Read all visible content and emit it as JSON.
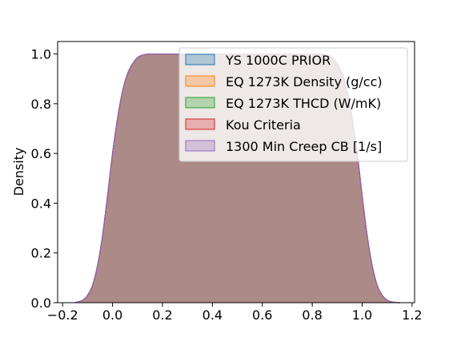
{
  "chart_data": {
    "type": "area",
    "title": "",
    "xlabel": "",
    "ylabel": "Density",
    "xlim": [
      -0.22,
      1.21
    ],
    "ylim": [
      0,
      1.05
    ],
    "xticks": [
      "−0.2",
      "0.0",
      "0.2",
      "0.4",
      "0.6",
      "0.8",
      "1.0",
      "1.2"
    ],
    "xtick_values": [
      -0.2,
      0.0,
      0.2,
      0.4,
      0.6,
      0.8,
      1.0,
      1.2
    ],
    "yticks": [
      "0.0",
      "0.2",
      "0.4",
      "0.6",
      "0.8",
      "1.0"
    ],
    "ytick_values": [
      0.0,
      0.2,
      0.4,
      0.6,
      0.8,
      1.0
    ],
    "grid": false,
    "legend_position": "top-right",
    "x": [
      -0.15,
      -0.12,
      -0.1,
      -0.08,
      -0.06,
      -0.04,
      -0.02,
      0.0,
      0.02,
      0.04,
      0.06,
      0.08,
      0.1,
      0.12,
      0.14,
      0.16,
      0.18,
      0.2,
      0.4,
      0.6,
      0.8,
      0.82,
      0.84,
      0.86,
      0.88,
      0.9,
      0.92,
      0.94,
      0.96,
      0.98,
      1.0,
      1.02,
      1.04,
      1.06,
      1.08,
      1.1,
      1.12,
      1.15
    ],
    "density": [
      0.0,
      0.01,
      0.03,
      0.07,
      0.15,
      0.27,
      0.43,
      0.6,
      0.74,
      0.85,
      0.92,
      0.96,
      0.985,
      0.995,
      0.999,
      1.0,
      1.0,
      1.0,
      1.0,
      1.0,
      1.0,
      1.0,
      0.999,
      0.995,
      0.985,
      0.96,
      0.92,
      0.85,
      0.74,
      0.6,
      0.43,
      0.27,
      0.15,
      0.07,
      0.03,
      0.01,
      0.003,
      0.0
    ],
    "series": [
      {
        "name": "YS 1000C PRIOR",
        "color": "#1f77b4"
      },
      {
        "name": "EQ 1273K Density (g/cc)",
        "color": "#ff7f0e"
      },
      {
        "name": "EQ 1273K THCD (W/mK)",
        "color": "#2ca02c"
      },
      {
        "name": "Kou Criteria",
        "color": "#d62728"
      },
      {
        "name": "1300 Min Creep CB [1/s]",
        "color": "#9467bd"
      }
    ]
  }
}
